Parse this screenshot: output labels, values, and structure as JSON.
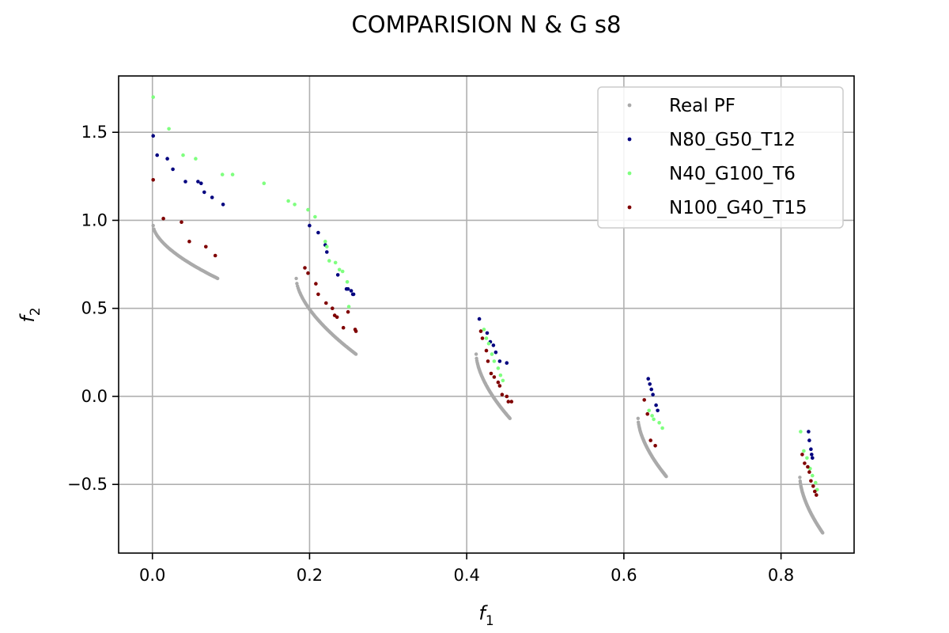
{
  "chart_data": {
    "type": "scatter",
    "title": "COMPARISION N & G s8",
    "xlabel": "f",
    "xlabel_sub": "1",
    "ylabel": "f",
    "ylabel_sub": "2",
    "xlim": [
      -0.043,
      0.893
    ],
    "ylim": [
      -0.89,
      1.82
    ],
    "xticks": [
      0.0,
      0.2,
      0.4,
      0.6,
      0.8
    ],
    "xtick_labels": [
      "0.0",
      "0.2",
      "0.4",
      "0.6",
      "0.8"
    ],
    "yticks": [
      -0.5,
      0.0,
      0.5,
      1.0,
      1.5
    ],
    "ytick_labels": [
      "−0.5",
      "0.0",
      "0.5",
      "1.0",
      "1.5"
    ],
    "grid": true,
    "legend_position": "top-right",
    "real_pf_segments": [
      {
        "x0": 0.001,
        "x1": 0.083,
        "y0": 0.97,
        "y1": 0.67,
        "pow": 0.6
      },
      {
        "x0": 0.183,
        "x1": 0.259,
        "y0": 0.67,
        "y1": 0.24,
        "pow": 0.6
      },
      {
        "x0": 0.412,
        "x1": 0.455,
        "y0": 0.24,
        "y1": -0.125,
        "pow": 0.6
      },
      {
        "x0": 0.618,
        "x1": 0.654,
        "y0": -0.125,
        "y1": -0.455,
        "pow": 0.6
      },
      {
        "x0": 0.824,
        "x1": 0.853,
        "y0": -0.46,
        "y1": -0.775,
        "pow": 0.6
      }
    ],
    "series": [
      {
        "name": "Real PF",
        "color": "#aaaaaa",
        "x": [],
        "y": []
      },
      {
        "name": "N80_G50_T12",
        "color": "#00007f",
        "x": [
          0.001,
          0.006,
          0.019,
          0.026,
          0.042,
          0.058,
          0.062,
          0.066,
          0.076,
          0.09,
          0.2,
          0.211,
          0.22,
          0.222,
          0.236,
          0.247,
          0.249,
          0.253,
          0.255,
          0.256,
          0.416,
          0.426,
          0.43,
          0.434,
          0.437,
          0.442,
          0.451,
          0.631,
          0.633,
          0.635,
          0.637,
          0.641,
          0.643,
          0.835,
          0.836,
          0.838,
          0.839,
          0.84
        ],
        "y": [
          1.48,
          1.37,
          1.35,
          1.29,
          1.22,
          1.22,
          1.21,
          1.16,
          1.13,
          1.09,
          0.97,
          0.93,
          0.86,
          0.82,
          0.69,
          0.61,
          0.61,
          0.6,
          0.58,
          0.58,
          0.44,
          0.36,
          0.31,
          0.29,
          0.25,
          0.2,
          0.19,
          0.1,
          0.07,
          0.04,
          0.01,
          -0.05,
          -0.08,
          -0.2,
          -0.25,
          -0.3,
          -0.33,
          -0.35
        ]
      },
      {
        "name": "N40_G100_T6",
        "color": "#7fff7f",
        "x": [
          0.001,
          0.021,
          0.039,
          0.055,
          0.089,
          0.102,
          0.142,
          0.173,
          0.181,
          0.198,
          0.207,
          0.22,
          0.222,
          0.225,
          0.233,
          0.238,
          0.242,
          0.248,
          0.25,
          0.422,
          0.425,
          0.428,
          0.432,
          0.435,
          0.44,
          0.443,
          0.446,
          0.632,
          0.636,
          0.638,
          0.645,
          0.649,
          0.825,
          0.829,
          0.833,
          0.837,
          0.84,
          0.844,
          0.846
        ],
        "y": [
          1.7,
          1.52,
          1.37,
          1.35,
          1.26,
          1.26,
          1.21,
          1.11,
          1.09,
          1.06,
          1.02,
          0.88,
          0.85,
          0.77,
          0.76,
          0.72,
          0.71,
          0.65,
          0.51,
          0.38,
          0.33,
          0.3,
          0.24,
          0.2,
          0.16,
          0.12,
          0.09,
          -0.08,
          -0.11,
          -0.13,
          -0.15,
          -0.18,
          -0.2,
          -0.31,
          -0.35,
          -0.41,
          -0.45,
          -0.49,
          -0.53
        ]
      },
      {
        "name": "N100_G40_T15",
        "color": "#7f0000",
        "x": [
          0.001,
          0.014,
          0.037,
          0.047,
          0.068,
          0.08,
          0.194,
          0.198,
          0.208,
          0.211,
          0.221,
          0.229,
          0.232,
          0.235,
          0.243,
          0.249,
          0.258,
          0.259,
          0.418,
          0.42,
          0.425,
          0.427,
          0.431,
          0.435,
          0.44,
          0.442,
          0.445,
          0.451,
          0.453,
          0.457,
          0.626,
          0.63,
          0.634,
          0.64,
          0.827,
          0.83,
          0.834,
          0.836,
          0.838,
          0.841,
          0.843,
          0.845
        ],
        "y": [
          1.23,
          1.01,
          0.99,
          0.88,
          0.85,
          0.8,
          0.73,
          0.7,
          0.64,
          0.58,
          0.53,
          0.5,
          0.46,
          0.45,
          0.39,
          0.48,
          0.38,
          0.37,
          0.37,
          0.33,
          0.26,
          0.2,
          0.13,
          0.11,
          0.08,
          0.06,
          0.01,
          0.0,
          -0.03,
          -0.03,
          -0.02,
          -0.1,
          -0.25,
          -0.28,
          -0.33,
          -0.38,
          -0.4,
          -0.43,
          -0.48,
          -0.51,
          -0.54,
          -0.56
        ]
      }
    ]
  }
}
